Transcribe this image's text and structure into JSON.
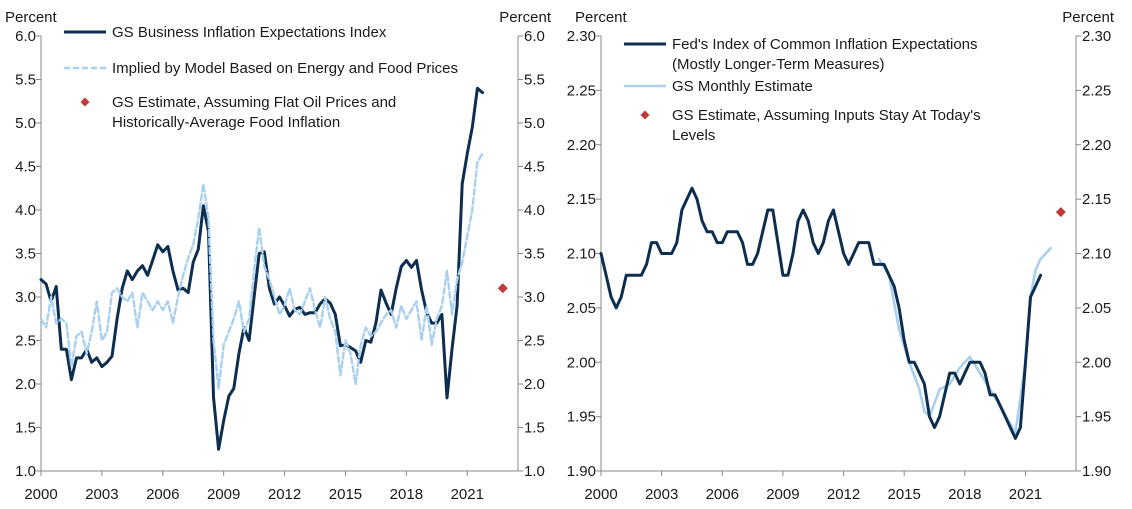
{
  "chart_data": [
    {
      "type": "line",
      "title": "",
      "left_axis_label": "Percent",
      "right_axis_label": "Percent",
      "xlim": [
        2000,
        2023.5
      ],
      "ylim": [
        1.0,
        6.0
      ],
      "x_ticks": [
        2000,
        2003,
        2006,
        2009,
        2012,
        2015,
        2018,
        2021
      ],
      "y_ticks": [
        1.0,
        1.5,
        2.0,
        2.5,
        3.0,
        3.5,
        4.0,
        4.5,
        5.0,
        5.5,
        6.0
      ],
      "y_tick_decimals": 1,
      "legend": [
        {
          "label": "GS Business Inflation Expectations Index",
          "style": "solid-dark"
        },
        {
          "label": "Implied by Model Based on Energy and Food Prices",
          "style": "dashed-light"
        },
        {
          "label": "GS Estimate, Assuming Flat Oil Prices and Historically-Average Food Inflation",
          "label_lines": [
            "GS Estimate, Assuming Flat Oil Prices and",
            "Historically-Average Food Inflation"
          ],
          "style": "diamond"
        }
      ],
      "series": [
        {
          "name": "GS Business Inflation Expectations Index",
          "color": "#0d2e4f",
          "dash": false,
          "x": [
            2000.0,
            2000.25,
            2000.5,
            2000.75,
            2001.0,
            2001.25,
            2001.5,
            2001.75,
            2002.0,
            2002.25,
            2002.5,
            2002.75,
            2003.0,
            2003.25,
            2003.5,
            2003.75,
            2004.0,
            2004.25,
            2004.5,
            2004.75,
            2005.0,
            2005.25,
            2005.5,
            2005.75,
            2006.0,
            2006.25,
            2006.5,
            2006.75,
            2007.0,
            2007.25,
            2007.5,
            2007.75,
            2008.0,
            2008.25,
            2008.5,
            2008.75,
            2009.0,
            2009.25,
            2009.5,
            2009.75,
            2010.0,
            2010.25,
            2010.5,
            2010.75,
            2011.0,
            2011.25,
            2011.5,
            2011.75,
            2012.0,
            2012.25,
            2012.5,
            2012.75,
            2013.0,
            2013.25,
            2013.5,
            2013.75,
            2014.0,
            2014.25,
            2014.5,
            2014.75,
            2015.0,
            2015.25,
            2015.5,
            2015.75,
            2016.0,
            2016.25,
            2016.5,
            2016.75,
            2017.0,
            2017.25,
            2017.5,
            2017.75,
            2018.0,
            2018.25,
            2018.5,
            2018.75,
            2019.0,
            2019.25,
            2019.5,
            2019.75,
            2020.0,
            2020.25,
            2020.5,
            2020.75,
            2021.0,
            2021.25,
            2021.5,
            2021.75
          ],
          "values": [
            3.2,
            3.15,
            2.95,
            3.12,
            2.4,
            2.4,
            2.05,
            2.3,
            2.3,
            2.4,
            2.25,
            2.3,
            2.2,
            2.25,
            2.32,
            2.75,
            3.1,
            3.3,
            3.2,
            3.3,
            3.36,
            3.25,
            3.42,
            3.6,
            3.52,
            3.58,
            3.3,
            3.08,
            3.1,
            3.05,
            3.4,
            3.55,
            4.05,
            3.75,
            1.85,
            1.25,
            1.58,
            1.86,
            1.95,
            2.35,
            2.65,
            2.5,
            3.0,
            3.5,
            3.52,
            3.1,
            2.92,
            3.0,
            2.9,
            2.78,
            2.86,
            2.88,
            2.8,
            2.82,
            2.82,
            2.92,
            2.98,
            2.93,
            2.8,
            2.44,
            2.45,
            2.42,
            2.38,
            2.25,
            2.5,
            2.48,
            2.7,
            3.08,
            2.93,
            2.8,
            3.1,
            3.35,
            3.42,
            3.34,
            3.42,
            3.08,
            2.82,
            2.7,
            2.7,
            2.8,
            1.84,
            2.4,
            2.9,
            4.3,
            4.65,
            4.95,
            5.4,
            5.35
          ]
        },
        {
          "name": "Implied by Model Based on Energy and Food Prices",
          "color": "#a9d0ee",
          "dash": true,
          "x": [
            2000.0,
            2000.25,
            2000.5,
            2000.75,
            2001.0,
            2001.25,
            2001.5,
            2001.75,
            2002.0,
            2002.25,
            2002.5,
            2002.75,
            2003.0,
            2003.25,
            2003.5,
            2003.75,
            2004.0,
            2004.25,
            2004.5,
            2004.75,
            2005.0,
            2005.25,
            2005.5,
            2005.75,
            2006.0,
            2006.25,
            2006.5,
            2006.75,
            2007.0,
            2007.25,
            2007.5,
            2007.75,
            2008.0,
            2008.25,
            2008.5,
            2008.75,
            2009.0,
            2009.25,
            2009.5,
            2009.75,
            2010.0,
            2010.25,
            2010.5,
            2010.75,
            2011.0,
            2011.25,
            2011.5,
            2011.75,
            2012.0,
            2012.25,
            2012.5,
            2012.75,
            2013.0,
            2013.25,
            2013.5,
            2013.75,
            2014.0,
            2014.25,
            2014.5,
            2014.75,
            2015.0,
            2015.25,
            2015.5,
            2015.75,
            2016.0,
            2016.25,
            2016.5,
            2016.75,
            2017.0,
            2017.25,
            2017.5,
            2017.75,
            2018.0,
            2018.25,
            2018.5,
            2018.75,
            2019.0,
            2019.25,
            2019.5,
            2019.75,
            2020.0,
            2020.25,
            2020.5,
            2020.75,
            2021.0,
            2021.25,
            2021.5,
            2021.75
          ],
          "values": [
            2.75,
            2.65,
            3.0,
            2.7,
            2.75,
            2.7,
            2.2,
            2.55,
            2.6,
            2.35,
            2.6,
            2.95,
            2.5,
            2.6,
            3.05,
            3.1,
            3.0,
            2.95,
            3.05,
            2.65,
            3.05,
            2.95,
            2.85,
            2.95,
            2.85,
            2.95,
            2.7,
            3.0,
            3.25,
            3.45,
            3.6,
            3.9,
            4.3,
            3.9,
            2.5,
            1.95,
            2.45,
            2.6,
            2.75,
            2.95,
            2.6,
            2.75,
            3.3,
            3.8,
            3.35,
            3.2,
            3.0,
            2.8,
            2.9,
            3.1,
            2.85,
            2.8,
            2.95,
            3.1,
            2.85,
            2.65,
            3.0,
            2.75,
            2.6,
            2.1,
            2.5,
            2.35,
            2.0,
            2.45,
            2.65,
            2.55,
            2.6,
            2.7,
            2.8,
            2.85,
            2.65,
            2.9,
            2.75,
            2.85,
            2.95,
            2.5,
            2.9,
            2.45,
            2.75,
            2.9,
            3.3,
            2.8,
            3.2,
            3.4,
            3.7,
            4.0,
            4.55,
            4.65
          ]
        }
      ],
      "markers": [
        {
          "name": "GS Estimate, Assuming Flat Oil Prices and Historically-Average Food Inflation",
          "x": 2022.75,
          "y": 3.1,
          "color": "#c0393b"
        }
      ]
    },
    {
      "type": "line",
      "title": "",
      "left_axis_label": "Percent",
      "right_axis_label": "Percent",
      "xlim": [
        2000,
        2023.5
      ],
      "ylim": [
        1.9,
        2.3
      ],
      "x_ticks": [
        2000,
        2003,
        2006,
        2009,
        2012,
        2015,
        2018,
        2021
      ],
      "y_ticks": [
        1.9,
        1.95,
        2.0,
        2.05,
        2.1,
        2.15,
        2.2,
        2.25,
        2.3
      ],
      "y_tick_decimals": 2,
      "legend": [
        {
          "label": "Fed's Index of Common Inflation Expectations (Mostly Longer-Term Measures)",
          "label_lines": [
            "Fed's Index of Common Inflation Expectations",
            "(Mostly Longer-Term Measures)"
          ],
          "style": "solid-dark"
        },
        {
          "label": "GS Monthly Estimate",
          "style": "solid-light"
        },
        {
          "label": "GS Estimate, Assuming Inputs Stay At Today's Levels",
          "label_lines": [
            "GS Estimate, Assuming Inputs Stay At Today's",
            "Levels"
          ],
          "style": "diamond"
        }
      ],
      "series": [
        {
          "name": "GS Monthly Estimate",
          "color": "#a9d0ee",
          "dash": false,
          "x": [
            2013.75,
            2014.25,
            2014.75,
            2015.25,
            2015.75,
            2016.0,
            2016.25,
            2016.75,
            2017.25,
            2017.75,
            2018.25,
            2018.75,
            2019.25,
            2019.75,
            2020.5,
            2021.0,
            2021.25,
            2021.5,
            2021.75,
            2022.0,
            2022.25
          ],
          "values": [
            2.095,
            2.08,
            2.03,
            2.0,
            1.975,
            1.955,
            1.95,
            1.975,
            1.98,
            1.995,
            2.005,
            1.99,
            1.975,
            1.96,
            1.935,
            2.0,
            2.06,
            2.085,
            2.095,
            2.1,
            2.105
          ]
        },
        {
          "name": "Fed's Index of Common Inflation Expectations (Mostly Longer-Term Measures)",
          "color": "#0d2e4f",
          "dash": false,
          "x": [
            2000.0,
            2000.25,
            2000.5,
            2000.75,
            2001.0,
            2001.25,
            2001.5,
            2001.75,
            2002.0,
            2002.25,
            2002.5,
            2002.75,
            2003.0,
            2003.25,
            2003.5,
            2003.75,
            2004.0,
            2004.25,
            2004.5,
            2004.75,
            2005.0,
            2005.25,
            2005.5,
            2005.75,
            2006.0,
            2006.25,
            2006.5,
            2006.75,
            2007.0,
            2007.25,
            2007.5,
            2007.75,
            2008.0,
            2008.25,
            2008.5,
            2008.75,
            2009.0,
            2009.25,
            2009.5,
            2009.75,
            2010.0,
            2010.25,
            2010.5,
            2010.75,
            2011.0,
            2011.25,
            2011.5,
            2011.75,
            2012.0,
            2012.25,
            2012.5,
            2012.75,
            2013.0,
            2013.25,
            2013.5,
            2013.75,
            2014.0,
            2014.25,
            2014.5,
            2014.75,
            2015.0,
            2015.25,
            2015.5,
            2015.75,
            2016.0,
            2016.25,
            2016.5,
            2016.75,
            2017.0,
            2017.25,
            2017.5,
            2017.75,
            2018.0,
            2018.25,
            2018.5,
            2018.75,
            2019.0,
            2019.25,
            2019.5,
            2019.75,
            2020.0,
            2020.25,
            2020.5,
            2020.75,
            2021.0,
            2021.25,
            2021.5,
            2021.75
          ],
          "values": [
            2.1,
            2.08,
            2.06,
            2.05,
            2.06,
            2.08,
            2.08,
            2.08,
            2.08,
            2.09,
            2.11,
            2.11,
            2.1,
            2.1,
            2.1,
            2.11,
            2.14,
            2.15,
            2.16,
            2.15,
            2.13,
            2.12,
            2.12,
            2.11,
            2.11,
            2.12,
            2.12,
            2.12,
            2.11,
            2.09,
            2.09,
            2.1,
            2.12,
            2.14,
            2.14,
            2.11,
            2.08,
            2.08,
            2.1,
            2.13,
            2.14,
            2.13,
            2.11,
            2.1,
            2.11,
            2.13,
            2.14,
            2.12,
            2.1,
            2.09,
            2.1,
            2.11,
            2.11,
            2.11,
            2.09,
            2.09,
            2.09,
            2.08,
            2.07,
            2.05,
            2.02,
            2.0,
            2.0,
            1.99,
            1.98,
            1.95,
            1.94,
            1.95,
            1.97,
            1.99,
            1.99,
            1.98,
            1.99,
            2.0,
            2.0,
            2.0,
            1.99,
            1.97,
            1.97,
            1.96,
            1.95,
            1.94,
            1.93,
            1.94,
            2.0,
            2.06,
            2.07,
            2.08
          ]
        }
      ],
      "markers": [
        {
          "name": "GS Estimate, Assuming Inputs Stay At Today's Levels",
          "x": 2022.75,
          "y": 2.138,
          "color": "#c0393b"
        }
      ]
    }
  ]
}
